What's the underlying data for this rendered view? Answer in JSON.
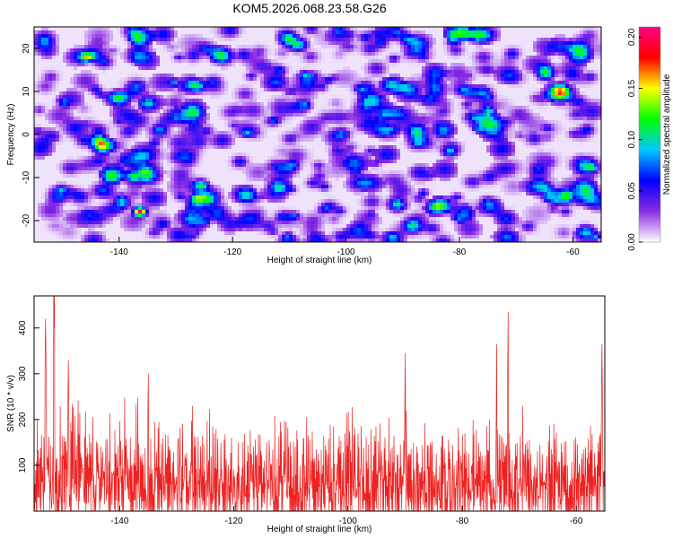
{
  "title": "KOM5.2026.068.23.58.G26",
  "chart_data": [
    {
      "type": "heatmap",
      "title": "KOM5.2026.068.23.58.G26",
      "xlabel": "Height of straight line (km)",
      "ylabel": "Frequency (Hz)",
      "xlim": [
        -155,
        -55
      ],
      "ylim": [
        -25,
        25
      ],
      "xticks": [
        -140,
        -120,
        -100,
        -80,
        -60
      ],
      "yticks": [
        -20,
        -10,
        0,
        10,
        20
      ],
      "colorbar": {
        "label": "Normalized spectral amplitude",
        "range": [
          0,
          0.21
        ],
        "ticks": [
          0.0,
          0.05,
          0.1,
          0.15,
          0.2
        ],
        "tick_labels": [
          "0.00",
          "0.05",
          "0.10",
          "0.15",
          "0.20"
        ],
        "colors": [
          "#ffffff",
          "#8a2be2",
          "#0000ff",
          "#00c8ff",
          "#00ff00",
          "#ffff00",
          "#ff0000",
          "#ff0080"
        ]
      },
      "description_values": {
        "typical_amplitude": 0.03,
        "max_amplitude": 0.2
      }
    },
    {
      "type": "line",
      "xlabel": "Height of straight line (km)",
      "ylabel": "SNR (10 * v/v)",
      "xlim": [
        -155,
        -55
      ],
      "ylim": [
        0,
        470
      ],
      "xticks": [
        -140,
        -120,
        -100,
        -80,
        -60
      ],
      "yticks": [
        100,
        200,
        300,
        400
      ],
      "series": [
        {
          "name": "SNR",
          "color": "#ee2222",
          "typical_range": [
            0,
            250
          ],
          "peaks": [
            {
              "x": -151.5,
              "y": 470
            },
            {
              "x": -153,
              "y": 420
            },
            {
              "x": -149,
              "y": 330
            },
            {
              "x": -135,
              "y": 300
            },
            {
              "x": -72,
              "y": 435
            },
            {
              "x": -74,
              "y": 365
            },
            {
              "x": -90,
              "y": 345
            },
            {
              "x": -55.5,
              "y": 365
            }
          ]
        }
      ]
    }
  ]
}
